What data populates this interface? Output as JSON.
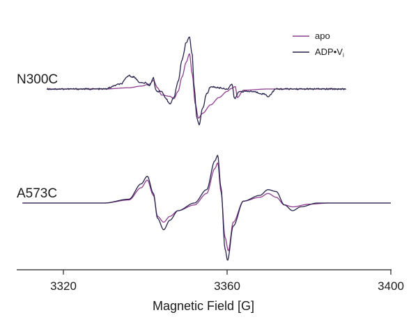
{
  "chart_data": {
    "type": "line",
    "xlabel": "Magnetic Field [G]",
    "xlim": [
      3310,
      3400
    ],
    "xticks": [
      "3320",
      "3360",
      "3400"
    ],
    "legend": {
      "placement": "top-right",
      "entries": [
        {
          "label": "apo",
          "color": "#8e3c8f"
        },
        {
          "label": "ADP",
          "dot": "•",
          "v": "V",
          "sub": "i",
          "color": "#25214a"
        }
      ]
    },
    "panels": [
      {
        "label": "N300C",
        "baseline": 0,
        "xrange": [
          3316,
          3389
        ],
        "series": [
          {
            "name": "apo",
            "color": "#8e3c8f",
            "points": [
              [
                3316,
                0
              ],
              [
                3330,
                0
              ],
              [
                3336,
                0.05
              ],
              [
                3339,
                0.12
              ],
              [
                3341,
                0.2
              ],
              [
                3342,
                0.35
              ],
              [
                3343,
                0.05
              ],
              [
                3344,
                -0.25
              ],
              [
                3346,
                -0.3
              ],
              [
                3347,
                -0.4
              ],
              [
                3348,
                -0.1
              ],
              [
                3349,
                0.5
              ],
              [
                3350,
                1.1
              ],
              [
                3350.8,
                1.45
              ],
              [
                3351.5,
                0.6
              ],
              [
                3352.2,
                -0.6
              ],
              [
                3353,
                -1.2
              ],
              [
                3354,
                -1.0
              ],
              [
                3356,
                -0.65
              ],
              [
                3358,
                -0.35
              ],
              [
                3360,
                -0.1
              ],
              [
                3361,
                0.02
              ],
              [
                3362,
                0.1
              ],
              [
                3362.5,
                -0.35
              ],
              [
                3364,
                -0.05
              ],
              [
                3370,
                0
              ],
              [
                3389,
                0
              ]
            ]
          },
          {
            "name": "ADP•Vi",
            "color": "#25214a",
            "noisy": true,
            "points": [
              [
                3316,
                0
              ],
              [
                3330,
                0
              ],
              [
                3334,
                0.2
              ],
              [
                3336,
                0.55
              ],
              [
                3337,
                0.5
              ],
              [
                3339,
                0.25
              ],
              [
                3340,
                0.25
              ],
              [
                3341,
                0.15
              ],
              [
                3342,
                0.45
              ],
              [
                3342.5,
                0.0
              ],
              [
                3343,
                -0.1
              ],
              [
                3344,
                -0.1
              ],
              [
                3345,
                -0.4
              ],
              [
                3346,
                -0.6
              ],
              [
                3347,
                -0.35
              ],
              [
                3348,
                0.3
              ],
              [
                3349,
                1.2
              ],
              [
                3350,
                1.9
              ],
              [
                3350.8,
                2.15
              ],
              [
                3351.4,
                1.5
              ],
              [
                3352,
                0
              ],
              [
                3352.6,
                -1.2
              ],
              [
                3353.2,
                -1.45
              ],
              [
                3354,
                -0.8
              ],
              [
                3355,
                -0.2
              ],
              [
                3356,
                0.1
              ],
              [
                3358,
                0.05
              ],
              [
                3360,
                0.0
              ],
              [
                3361.2,
                0.2
              ],
              [
                3361.8,
                -0.4
              ],
              [
                3363,
                -0.1
              ],
              [
                3366,
                -0.1
              ],
              [
                3369,
                -0.2
              ],
              [
                3370,
                -0.3
              ],
              [
                3372,
                0.0
              ],
              [
                3389,
                0
              ]
            ]
          }
        ]
      },
      {
        "label": "A573C",
        "baseline": 0,
        "xrange": [
          3310,
          3400
        ],
        "series": [
          {
            "name": "apo",
            "color": "#8e3c8f",
            "points": [
              [
                3310,
                0
              ],
              [
                3330,
                0
              ],
              [
                3336,
                0.08
              ],
              [
                3339,
                0.4
              ],
              [
                3340.5,
                0.6
              ],
              [
                3342,
                0.2
              ],
              [
                3343,
                -0.35
              ],
              [
                3344.5,
                -0.5
              ],
              [
                3346,
                -0.35
              ],
              [
                3348,
                -0.2
              ],
              [
                3352,
                -0.05
              ],
              [
                3355,
                0.25
              ],
              [
                3357,
                0.9
              ],
              [
                3357.7,
                1.05
              ],
              [
                3358.5,
                0.3
              ],
              [
                3359.5,
                -0.9
              ],
              [
                3360.3,
                -1.25
              ],
              [
                3361.5,
                -0.5
              ],
              [
                3364,
                0.05
              ],
              [
                3368,
                0.15
              ],
              [
                3370,
                0.25
              ],
              [
                3372,
                0.15
              ],
              [
                3374,
                -0.05
              ],
              [
                3376,
                -0.1
              ],
              [
                3380,
                -0.03
              ],
              [
                3385,
                0
              ],
              [
                3400,
                0
              ]
            ]
          },
          {
            "name": "ADP•Vi",
            "color": "#25214a",
            "points": [
              [
                3310,
                0
              ],
              [
                3330,
                0
              ],
              [
                3336,
                0.1
              ],
              [
                3339,
                0.5
              ],
              [
                3340.5,
                0.7
              ],
              [
                3342,
                0.25
              ],
              [
                3343,
                -0.4
              ],
              [
                3344.5,
                -0.7
              ],
              [
                3346,
                -0.45
              ],
              [
                3348,
                -0.2
              ],
              [
                3352,
                0.0
              ],
              [
                3355,
                0.35
              ],
              [
                3357,
                1.1
              ],
              [
                3357.7,
                1.25
              ],
              [
                3358.5,
                0.4
              ],
              [
                3359.5,
                -1.2
              ],
              [
                3360.1,
                -1.5
              ],
              [
                3361.5,
                -0.6
              ],
              [
                3364,
                0.05
              ],
              [
                3368,
                0.2
              ],
              [
                3370,
                0.35
              ],
              [
                3372,
                0.3
              ],
              [
                3374,
                -0.05
              ],
              [
                3376,
                -0.2
              ],
              [
                3378,
                -0.1
              ],
              [
                3382,
                0
              ],
              [
                3400,
                0
              ]
            ]
          }
        ]
      }
    ]
  }
}
